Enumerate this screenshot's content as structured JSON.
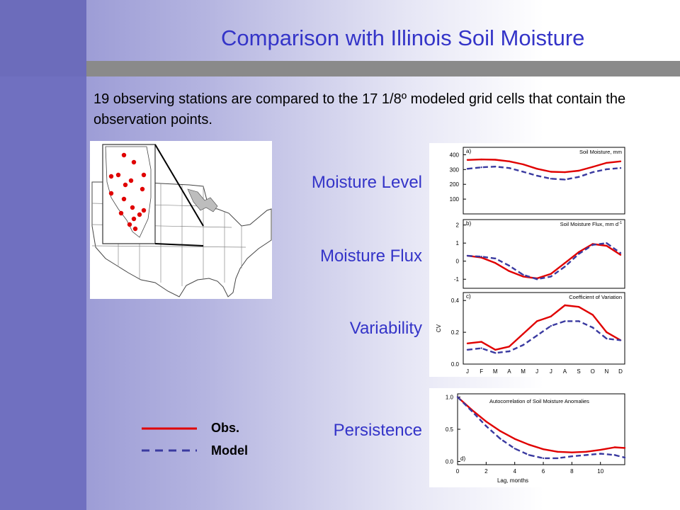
{
  "slide": {
    "title": "Comparison with Illinois Soil Moisture",
    "intro": "19 observing stations are compared to the 17 1/8º modeled grid cells that contain the observation points.",
    "row_labels": {
      "level": "Moisture Level",
      "flux": "Moisture Flux",
      "variability": "Variability",
      "persistence": "Persistence"
    },
    "legend": {
      "obs": "Obs.",
      "model": "Model"
    },
    "colors": {
      "obs": "#e00000",
      "model": "#3a3aa0",
      "title": "#3434c8"
    }
  },
  "chart_data": [
    {
      "type": "line",
      "panel_tag": "a)",
      "title": "Soil Moisture, mm",
      "x": [
        "J",
        "F",
        "M",
        "A",
        "M",
        "J",
        "J",
        "A",
        "S",
        "O",
        "N",
        "D"
      ],
      "yticks": [
        "400",
        "300",
        "200",
        "100"
      ],
      "ylim": [
        0,
        450
      ],
      "series": [
        {
          "name": "Obs.",
          "values": [
            365,
            368,
            366,
            355,
            335,
            305,
            285,
            282,
            292,
            318,
            345,
            355
          ]
        },
        {
          "name": "Model",
          "values": [
            305,
            315,
            320,
            310,
            285,
            258,
            238,
            232,
            250,
            282,
            302,
            310
          ]
        }
      ]
    },
    {
      "type": "line",
      "panel_tag": "b)",
      "title": "Soil Moisture Flux, mm d",
      "title_sup": "-1",
      "x": [
        "J",
        "F",
        "M",
        "A",
        "M",
        "J",
        "J",
        "A",
        "S",
        "O",
        "N",
        "D"
      ],
      "yticks": [
        "2",
        "1",
        "0",
        "-1"
      ],
      "ylim": [
        -1.5,
        2.3
      ],
      "series": [
        {
          "name": "Obs.",
          "values": [
            0.3,
            0.2,
            -0.1,
            -0.55,
            -0.85,
            -0.95,
            -0.7,
            -0.1,
            0.5,
            0.95,
            0.85,
            0.35
          ]
        },
        {
          "name": "Model",
          "values": [
            0.3,
            0.25,
            0.15,
            -0.25,
            -0.75,
            -1.0,
            -0.85,
            -0.3,
            0.4,
            0.9,
            1.0,
            0.45
          ]
        }
      ]
    },
    {
      "type": "line",
      "panel_tag": "c)",
      "title": "Coefficient of Variation",
      "ylabel": "CV",
      "x": [
        "J",
        "F",
        "M",
        "A",
        "M",
        "J",
        "J",
        "A",
        "S",
        "O",
        "N",
        "D"
      ],
      "yticks": [
        "0.4",
        "0.2",
        "0.0"
      ],
      "ylim": [
        0,
        0.45
      ],
      "series": [
        {
          "name": "Obs.",
          "values": [
            0.13,
            0.14,
            0.09,
            0.11,
            0.19,
            0.27,
            0.3,
            0.37,
            0.36,
            0.31,
            0.2,
            0.15
          ]
        },
        {
          "name": "Model",
          "values": [
            0.09,
            0.1,
            0.07,
            0.08,
            0.12,
            0.18,
            0.24,
            0.27,
            0.27,
            0.23,
            0.16,
            0.15
          ]
        }
      ]
    },
    {
      "type": "line",
      "panel_tag": "d)",
      "title": "Autocorrelation of Soil Moisture Anomalies",
      "xlabel": "Lag, months",
      "xticks": [
        "0",
        "2",
        "4",
        "6",
        "8",
        "10"
      ],
      "yticks": [
        "1.0",
        "0.5",
        "0.0"
      ],
      "xlim": [
        0,
        11.7
      ],
      "ylim": [
        -0.05,
        1.05
      ],
      "series": [
        {
          "name": "Obs.",
          "x": [
            0,
            1,
            2,
            3,
            4,
            5,
            6,
            7,
            8,
            9,
            10,
            11,
            11.7
          ],
          "values": [
            1.0,
            0.8,
            0.62,
            0.47,
            0.35,
            0.26,
            0.19,
            0.15,
            0.14,
            0.15,
            0.18,
            0.22,
            0.21
          ]
        },
        {
          "name": "Model",
          "x": [
            0,
            1,
            2,
            3,
            4,
            5,
            6,
            7,
            8,
            9,
            10,
            11,
            11.7
          ],
          "values": [
            1.0,
            0.78,
            0.55,
            0.35,
            0.2,
            0.1,
            0.05,
            0.05,
            0.08,
            0.1,
            0.12,
            0.1,
            0.06
          ]
        }
      ]
    }
  ]
}
